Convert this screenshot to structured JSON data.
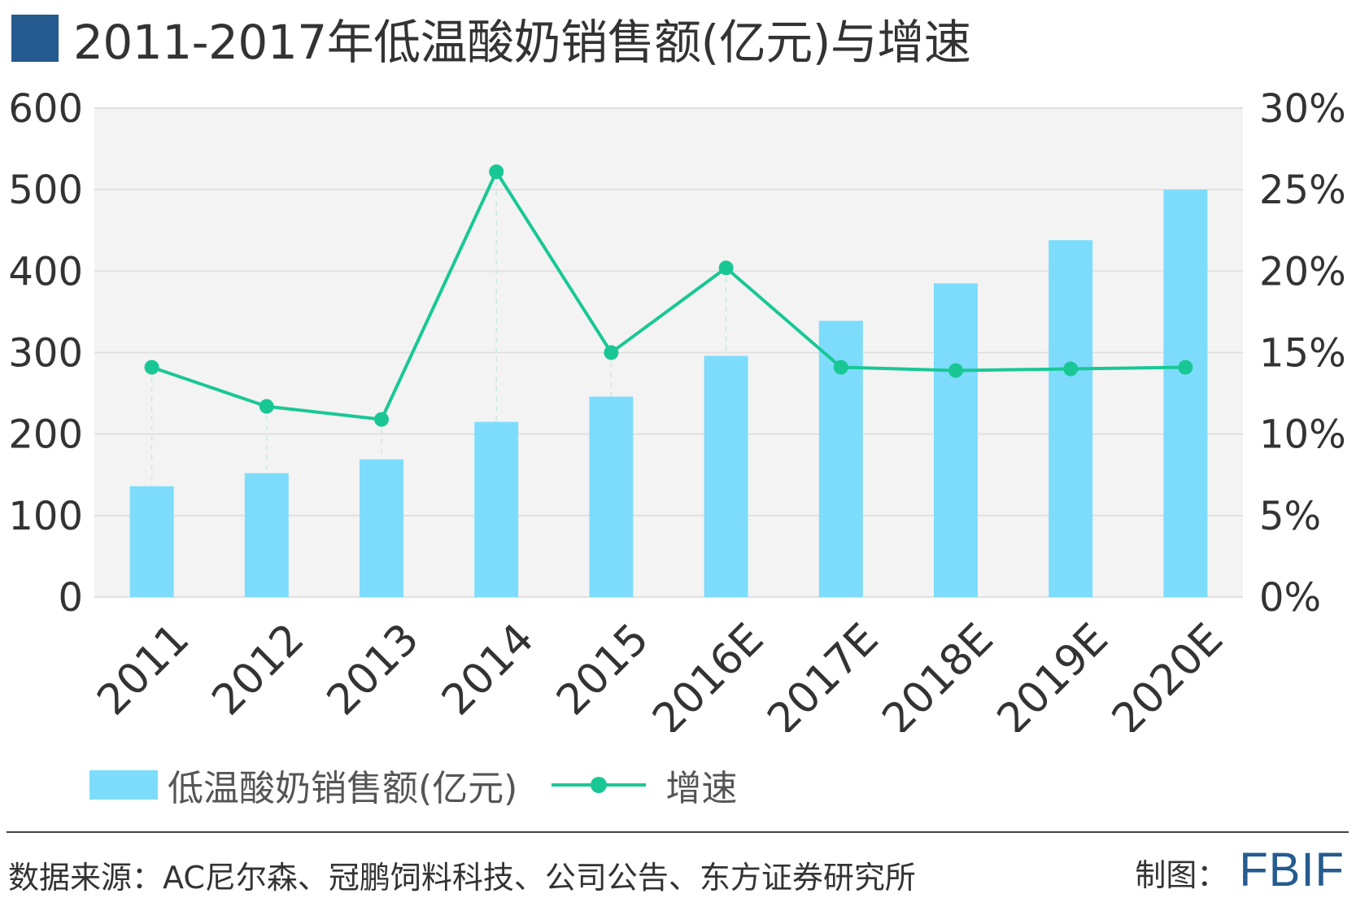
{
  "title": "2011-2017年低温酸奶销售额(亿元)与增速",
  "colors": {
    "title_square": "#255b8e",
    "bar": "#7ddcfb",
    "line": "#19c795",
    "plot_bg": "#f3f3f3",
    "grid": "#e0e0e0"
  },
  "chart_data": {
    "type": "bar",
    "title": "2011-2017年低温酸奶销售额(亿元)与增速",
    "categories": [
      "2011",
      "2012",
      "2013",
      "2014",
      "2015",
      "2016E",
      "2017E",
      "2018E",
      "2019E",
      "2020E"
    ],
    "series": [
      {
        "name": "低温酸奶销售额(亿元)",
        "type": "bar",
        "axis": "left",
        "values": [
          136,
          152,
          169,
          215,
          246,
          296,
          339,
          385,
          438,
          500
        ]
      },
      {
        "name": "增速",
        "type": "line",
        "axis": "right",
        "unit": "%",
        "values": [
          14.1,
          11.7,
          10.9,
          26.1,
          15.0,
          20.2,
          14.1,
          13.9,
          14.0,
          14.1
        ]
      }
    ],
    "y_left": {
      "ylim": [
        0,
        600
      ],
      "ticks": [
        "0",
        "100",
        "200",
        "300",
        "400",
        "500",
        "600"
      ]
    },
    "y_right": {
      "ylim": [
        0,
        30
      ],
      "ticks": [
        "0%",
        "5%",
        "10%",
        "15%",
        "20%",
        "25%",
        "30%"
      ]
    },
    "grid": true,
    "legend_position": "bottom-left"
  },
  "legend": {
    "bar_label": "低温酸奶销售额(亿元)",
    "line_label": "增速"
  },
  "footer": {
    "source": "数据来源：AC尼尔森、冠鹏饲料科技、公司公告、东方证券研究所",
    "credit_label": "制图：",
    "logo": "FBIF"
  }
}
